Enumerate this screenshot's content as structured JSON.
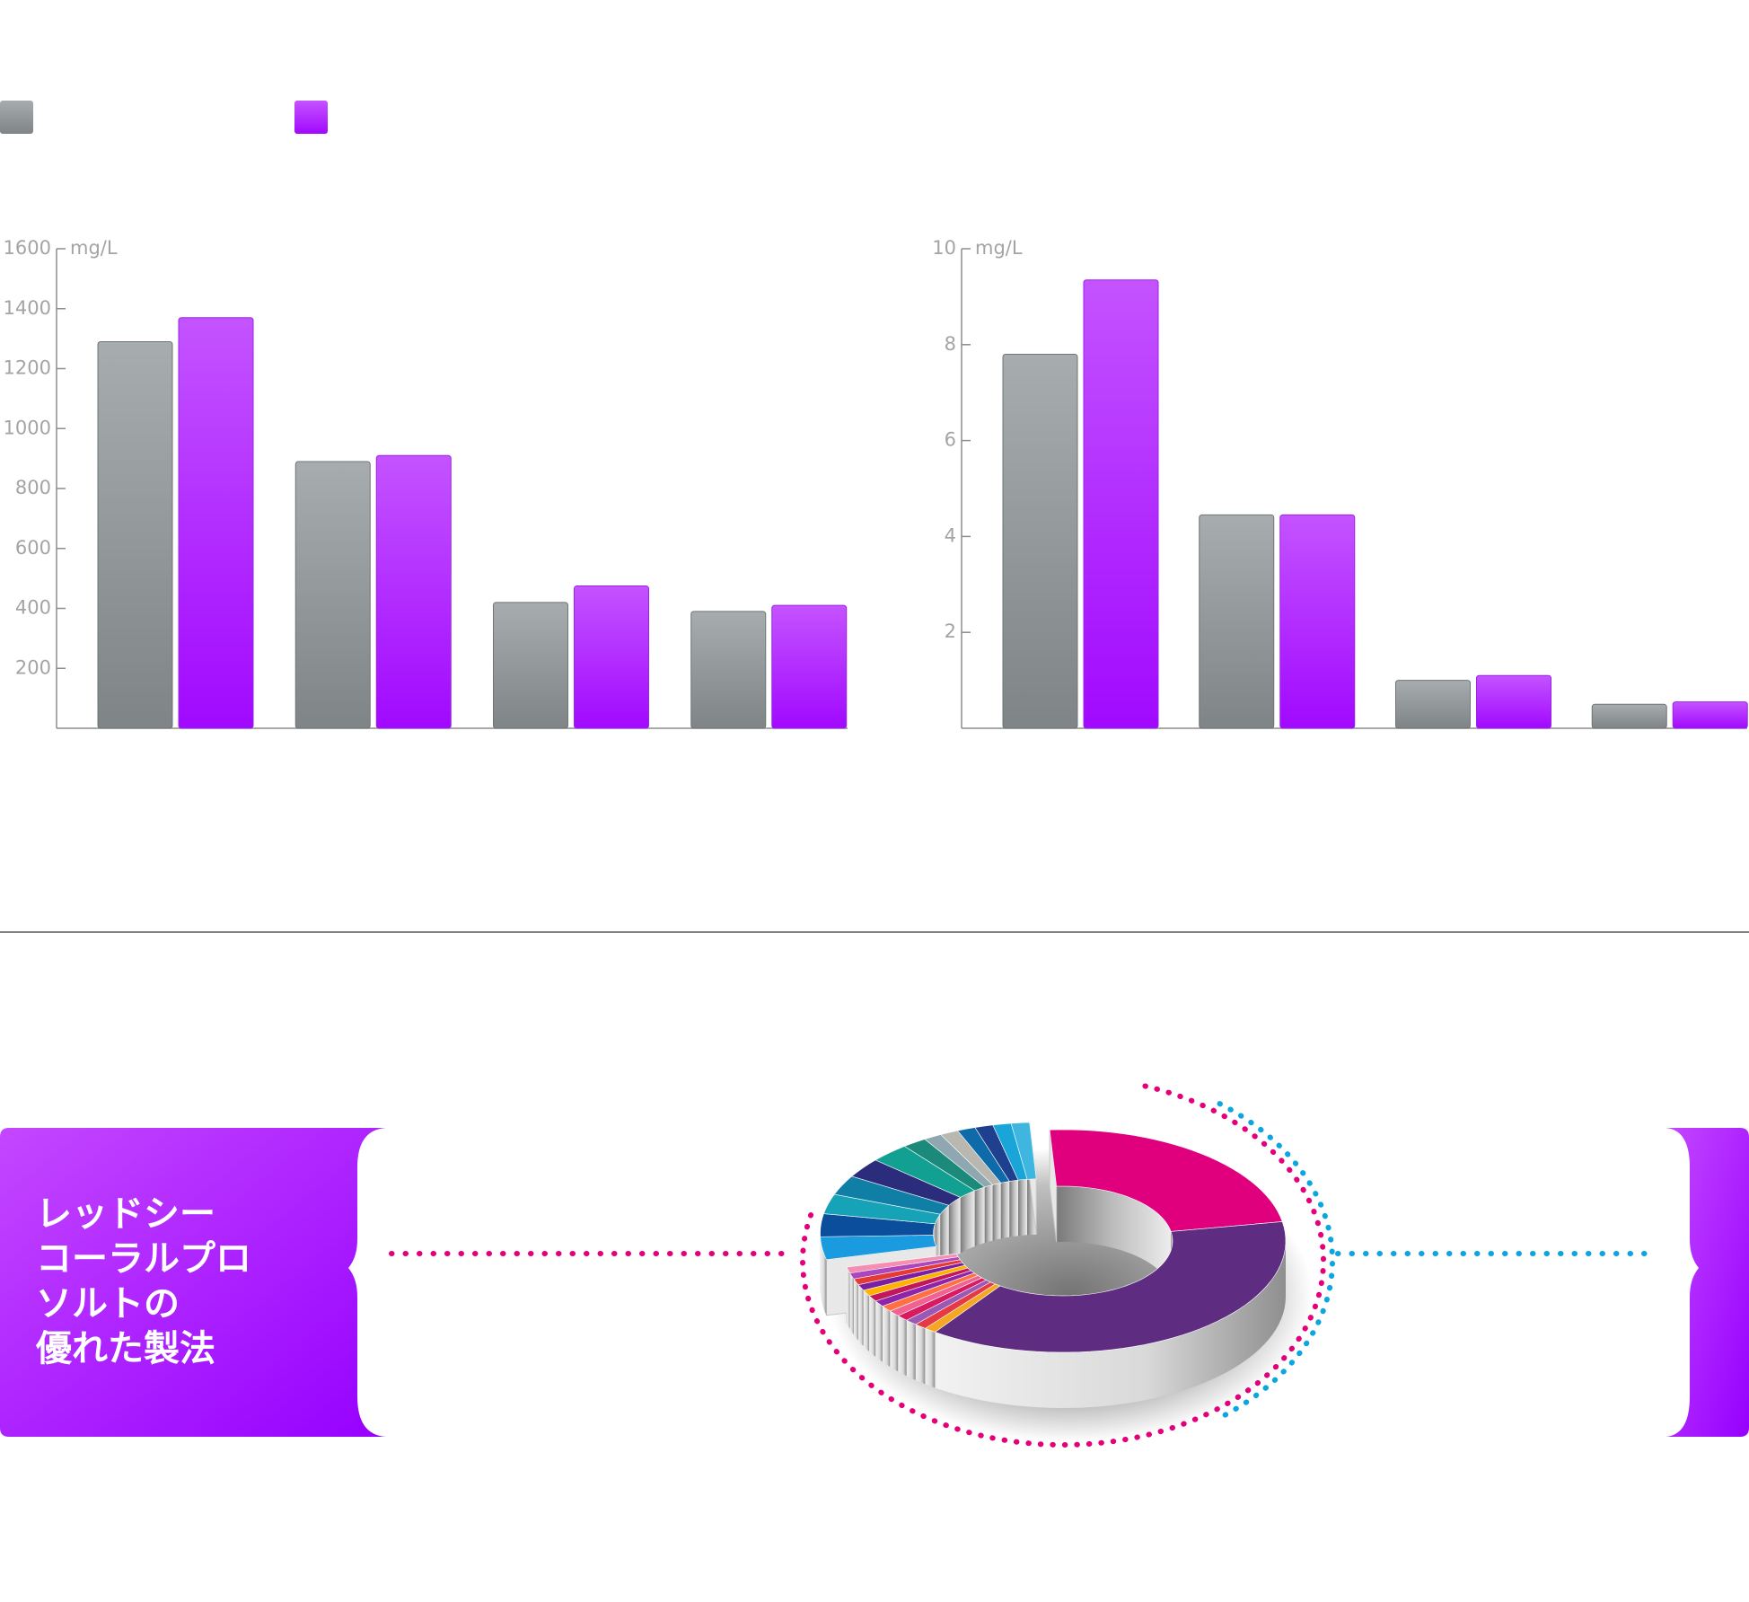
{
  "legend": {
    "items": [
      {
        "color": "#8a9092"
      },
      {
        "color": "#a70dff"
      }
    ]
  },
  "chart_data": [
    {
      "type": "bar",
      "unit_label": "mg/L",
      "ylim": [
        0,
        1600
      ],
      "yticks": [
        200,
        400,
        600,
        800,
        1000,
        1200,
        1400,
        1600
      ],
      "series": [
        {
          "color": "#8a9092",
          "values": [
            1290,
            890,
            420,
            390
          ]
        },
        {
          "color": "#a70dff",
          "values": [
            1370,
            910,
            475,
            410
          ]
        }
      ]
    },
    {
      "type": "bar",
      "unit_label": "mg/L",
      "ylim": [
        0,
        10
      ],
      "yticks": [
        2,
        4,
        6,
        8,
        10
      ],
      "series": [
        {
          "color": "#8a9092",
          "values": [
            7.8,
            4.45,
            1.0,
            0.5
          ]
        },
        {
          "color": "#a70dff",
          "values": [
            9.35,
            4.45,
            1.1,
            0.55
          ]
        }
      ]
    },
    {
      "type": "pie",
      "style": "3d-donut",
      "slices": [
        {
          "color": "#e0007d",
          "value": 21
        },
        {
          "color": "#5e2d82",
          "value": 34
        },
        {
          "color": "#f5a623",
          "value": 0.8
        },
        {
          "color": "#e63946",
          "value": 0.8
        },
        {
          "color": "#9b59b6",
          "value": 0.8
        },
        {
          "color": "#d81b60",
          "value": 0.8
        },
        {
          "color": "#f06292",
          "value": 0.8
        },
        {
          "color": "#ff7043",
          "value": 0.8
        },
        {
          "color": "#8e24aa",
          "value": 0.8
        },
        {
          "color": "#c2185b",
          "value": 0.8
        },
        {
          "color": "#ffb300",
          "value": 0.8
        },
        {
          "color": "#7b1fa2",
          "value": 0.8
        },
        {
          "color": "#e53935",
          "value": 0.8
        },
        {
          "color": "#ab47bc",
          "value": 0.8
        },
        {
          "color": "#f48fb1",
          "value": 0.8
        },
        {
          "color": "#1a9be0",
          "value": 3
        },
        {
          "color": "#0b4e9b",
          "value": 3
        },
        {
          "color": "#16a3b8",
          "value": 2.6
        },
        {
          "color": "#0f7fa6",
          "value": 2.6
        },
        {
          "color": "#2b2d7c",
          "value": 2.6
        },
        {
          "color": "#12a092",
          "value": 2.6
        },
        {
          "color": "#1b8a7a",
          "value": 1.6
        },
        {
          "color": "#8fa7b0",
          "value": 1.2
        },
        {
          "color": "#b8b8b0",
          "value": 1.2
        },
        {
          "color": "#0e6aa8",
          "value": 1.2
        },
        {
          "color": "#1f3f8f",
          "value": 1.2
        },
        {
          "color": "#1aa5d8",
          "value": 1.2
        },
        {
          "color": "#3fb6e0",
          "value": 1.2
        }
      ]
    }
  ],
  "panel": {
    "lines": [
      "レッドシー",
      "コーラルプロ",
      "ソルトの",
      "優れた製法"
    ],
    "color_top": "#c44bff",
    "color_bottom": "#9a00ff"
  },
  "accents": {
    "magenta": "#e5007a",
    "cyan": "#0ba6e0"
  }
}
